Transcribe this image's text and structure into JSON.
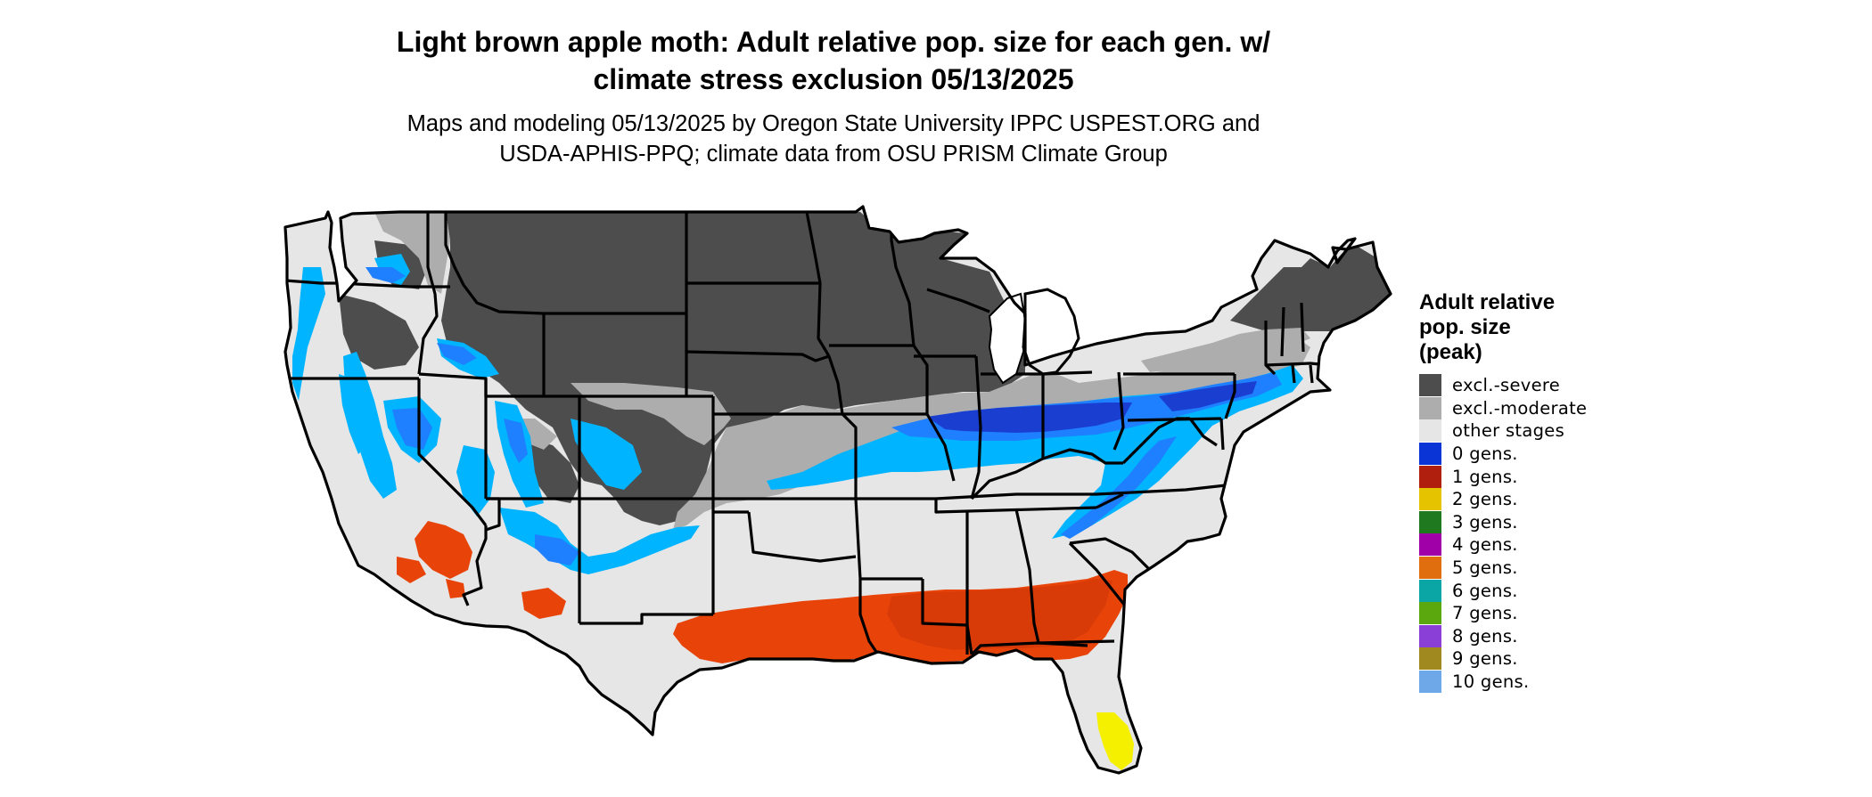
{
  "title": {
    "line1": "Light brown apple moth: Adult relative pop. size for each gen. w/",
    "line2": "climate stress exclusion 05/13/2025"
  },
  "subtitle": {
    "line1": "Maps and modeling 05/13/2025 by Oregon State University IPPC USPEST.ORG and",
    "line2": "USDA-APHIS-PPQ; climate data from OSU PRISM Climate Group"
  },
  "legend": {
    "title_lines": [
      "Adult relative",
      "pop. size",
      "(peak)"
    ],
    "items": [
      {
        "label": "excl.-severe",
        "color": "#4d4d4d"
      },
      {
        "label": "excl.-moderate",
        "color": "#adadad"
      },
      {
        "label": "other stages",
        "color": "#e6e6e6"
      },
      {
        "label": "0 gens.",
        "color": "#0a34d6"
      },
      {
        "label": "1 gens.",
        "color": "#b01e0e"
      },
      {
        "label": "2 gens.",
        "color": "#e6c300"
      },
      {
        "label": "3 gens.",
        "color": "#1f7a1f"
      },
      {
        "label": "4 gens.",
        "color": "#a000a8"
      },
      {
        "label": "5 gens.",
        "color": "#e06e0e"
      },
      {
        "label": "6 gens.",
        "color": "#0aa5a5"
      },
      {
        "label": "7 gens.",
        "color": "#5aa80e"
      },
      {
        "label": "8 gens.",
        "color": "#8a3fd6"
      },
      {
        "label": "9 gens.",
        "color": "#a08a20"
      },
      {
        "label": "10 gens.",
        "color": "#6fa8e8"
      }
    ]
  },
  "map": {
    "colors": {
      "severe": "#4d4d4d",
      "moderate": "#adadad",
      "other": "#e6e6e6",
      "zero_gen_light": "#00b4ff",
      "zero_gen_mid": "#1e7fff",
      "zero_gen_dark": "#1a3fd0",
      "one_gen": "#e8440a",
      "two_gen": "#f5f000",
      "border": "#000000"
    }
  }
}
